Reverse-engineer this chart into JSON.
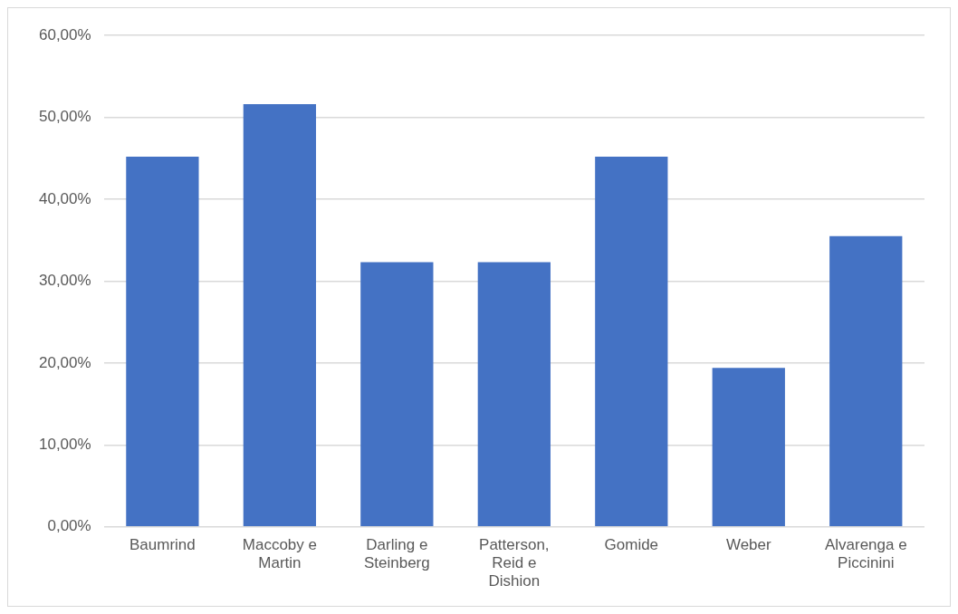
{
  "chart_data": {
    "type": "bar",
    "categories": [
      "Baumrind",
      "Maccoby e Martin",
      "Darling e Steinberg",
      "Patterson, Reid e Dishion",
      "Gomide",
      "Weber",
      "Alvarenga e Piccinini"
    ],
    "values": [
      45.2,
      51.6,
      32.3,
      32.3,
      45.2,
      19.4,
      35.5
    ],
    "color": "#4472c4",
    "ylim": [
      0,
      60
    ],
    "yticks": [
      {
        "value": 0,
        "label": "0,00%"
      },
      {
        "value": 10,
        "label": "10,00%"
      },
      {
        "value": 20,
        "label": "20,00%"
      },
      {
        "value": 30,
        "label": "30,00%"
      },
      {
        "value": 40,
        "label": "40,00%"
      },
      {
        "value": 50,
        "label": "50,00%"
      },
      {
        "value": 60,
        "label": "60,00%"
      }
    ],
    "grid": "y",
    "legend": false
  }
}
